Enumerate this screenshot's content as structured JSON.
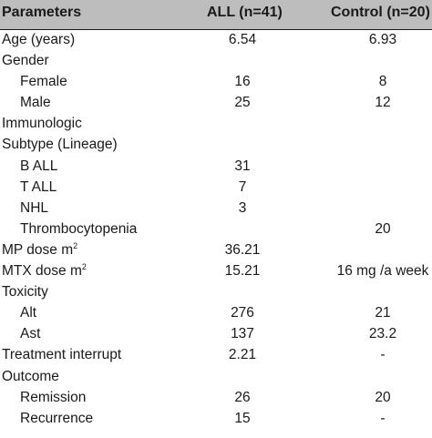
{
  "table": {
    "headers": {
      "parameters": "Parameters",
      "all": "ALL (n=41)",
      "control": "Control (n=20)"
    },
    "rows": [
      {
        "label": "Age (years)",
        "all": "6.54",
        "control": "6.93",
        "indent": false
      },
      {
        "label": "Gender",
        "all": "",
        "control": "",
        "indent": false
      },
      {
        "label": "Female",
        "all": "16",
        "control": "8",
        "indent": true
      },
      {
        "label": "Male",
        "all": "25",
        "control": "12",
        "indent": true
      },
      {
        "label": "Immunologic",
        "all": "",
        "control": "",
        "indent": false
      },
      {
        "label": "Subtype (Lineage)",
        "all": "",
        "control": "",
        "indent": false
      },
      {
        "label": "B ALL",
        "all": "31",
        "control": "",
        "indent": true
      },
      {
        "label": "T ALL",
        "all": "7",
        "control": "",
        "indent": true
      },
      {
        "label": "NHL",
        "all": "3",
        "control": "",
        "indent": true
      },
      {
        "label": "Thrombocytopenia",
        "all": "",
        "control": "20",
        "indent": true
      },
      {
        "label": "MP dose m",
        "sup": "2",
        "all": "36.21",
        "control": "",
        "indent": false
      },
      {
        "label": "MTX dose m",
        "sup": "2",
        "all": "15.21",
        "control": "16 mg /a week",
        "indent": false
      },
      {
        "label": "Toxicity",
        "all": "",
        "control": "",
        "indent": false
      },
      {
        "label": "Alt",
        "all": "276",
        "control": "21",
        "indent": true
      },
      {
        "label": "Ast",
        "all": "137",
        "control": "23.2",
        "indent": true
      },
      {
        "label": "Treatment interrupt",
        "all": "2.21",
        "control": "-",
        "indent": false
      },
      {
        "label": "Outcome",
        "all": "",
        "control": "",
        "indent": false
      },
      {
        "label": "Remission",
        "all": "26",
        "control": "20",
        "indent": true
      },
      {
        "label": "Recurrence",
        "all": "15",
        "control": "-",
        "indent": true
      }
    ]
  }
}
